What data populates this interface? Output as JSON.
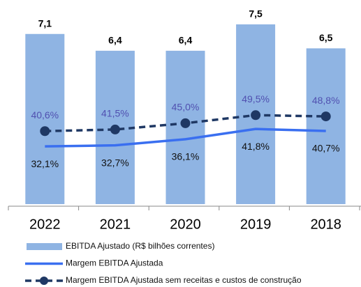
{
  "chart_data": {
    "type": "bar",
    "categories": [
      "2022",
      "2021",
      "2020",
      "2019",
      "2018"
    ],
    "ylim": [
      0,
      7.5
    ],
    "y2lim": [
      0,
      100
    ],
    "series": [
      {
        "name": "EBITDA Ajustado (R$ bilhões correntes)",
        "type": "bar",
        "color": "#8fb4e3",
        "values": [
          7.1,
          6.4,
          6.4,
          7.5,
          6.5
        ],
        "value_labels": [
          "7,1",
          "6,4",
          "6,4",
          "7,5",
          "6,5"
        ]
      },
      {
        "name": "Margem EBITDA Ajustada",
        "type": "line",
        "axis": "y2",
        "color": "#3a6ff0",
        "values": [
          32.1,
          32.7,
          36.1,
          41.8,
          40.7
        ],
        "value_labels": [
          "32,1%",
          "32,7%",
          "36,1%",
          "41,8%",
          "40,7%"
        ]
      },
      {
        "name": "Margem EBITDA Ajustada sem receitas e custos de construção",
        "type": "line",
        "axis": "y2",
        "color": "#1f3864",
        "dashed": true,
        "marker": true,
        "values": [
          40.6,
          41.5,
          45.0,
          49.5,
          48.8
        ],
        "value_labels": [
          "40,6%",
          "41,5%",
          "45,0%",
          "49,5%",
          "48,8%"
        ]
      }
    ]
  }
}
